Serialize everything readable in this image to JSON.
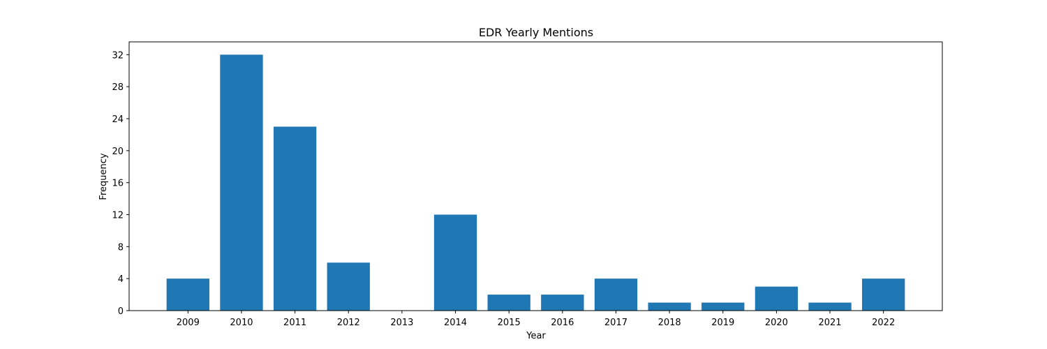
{
  "chart_data": {
    "type": "bar",
    "title": "EDR Yearly Mentions",
    "xlabel": "Year",
    "ylabel": "Frequency",
    "categories": [
      "2009",
      "2010",
      "2011",
      "2012",
      "2013",
      "2014",
      "2015",
      "2016",
      "2017",
      "2018",
      "2019",
      "2020",
      "2021",
      "2022"
    ],
    "values": [
      4,
      32,
      23,
      6,
      0,
      12,
      2,
      2,
      4,
      1,
      1,
      3,
      1,
      4
    ],
    "ylim": [
      0,
      33.6
    ],
    "yticks": [
      "0",
      "4",
      "8",
      "12",
      "16",
      "20",
      "24",
      "28",
      "32"
    ],
    "grid": false,
    "legend": "none",
    "bar_color": "#1f77b4"
  }
}
